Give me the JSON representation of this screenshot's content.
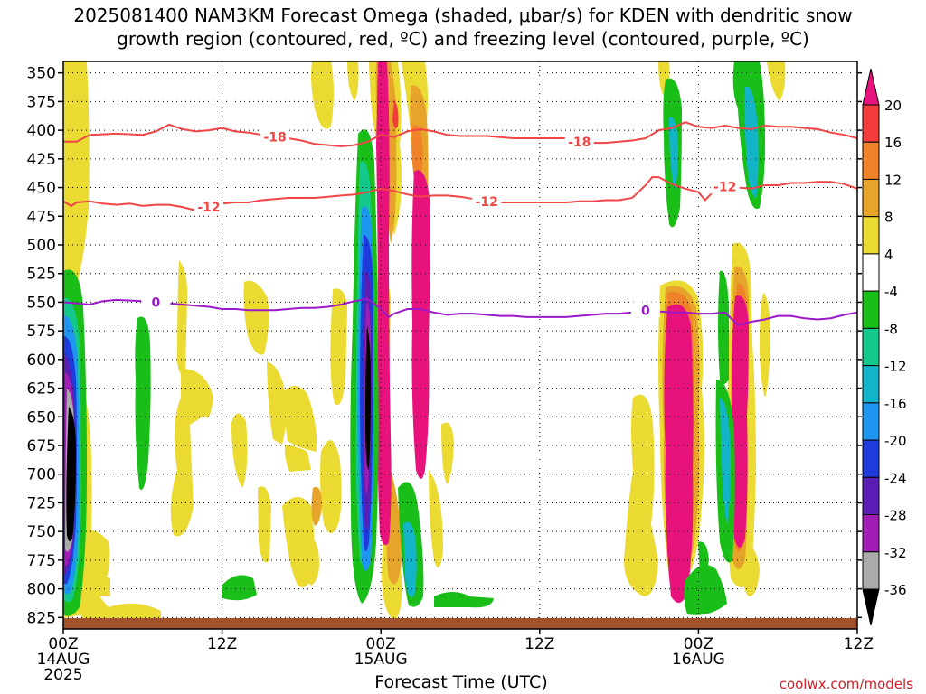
{
  "title_line1": "2025081400 NAM3KM Forecast Omega (shaded, μbar/s) for KDEN with dendritic snow",
  "title_line2": "growth region (contoured, red, ºC) and freezing level (contoured, purple, ºC)",
  "xlabel": "Forecast Time (UTC)",
  "credit": "coolwx.com/models",
  "chart_data": {
    "type": "heatmap",
    "title": "2025081400 NAM3KM Forecast Omega (shaded, μbar/s) for KDEN with dendritic snow growth region (contoured, red, ºC) and freezing level (contoured, purple, ºC)",
    "xlabel": "Forecast Time (UTC)",
    "ylabel": "",
    "x_range_hours": [
      0,
      60
    ],
    "y_range_mb": [
      340,
      835
    ],
    "y_reversed": true,
    "grid": true,
    "y_ticks": [
      350,
      375,
      400,
      425,
      450,
      475,
      500,
      525,
      550,
      575,
      600,
      625,
      650,
      675,
      700,
      725,
      750,
      775,
      800,
      825
    ],
    "x_ticks": [
      {
        "hour": 0,
        "lines": [
          "00Z",
          "14AUG",
          "2025"
        ]
      },
      {
        "hour": 12,
        "lines": [
          "12Z"
        ]
      },
      {
        "hour": 24,
        "lines": [
          "00Z",
          "15AUG"
        ]
      },
      {
        "hour": 36,
        "lines": [
          "12Z"
        ]
      },
      {
        "hour": 48,
        "lines": [
          "00Z",
          "16AUG"
        ]
      },
      {
        "hour": 60,
        "lines": [
          "12Z"
        ]
      }
    ],
    "colorbar": {
      "labels": [
        "20",
        "16",
        "12",
        "8",
        "4",
        "-4",
        "-8",
        "-12",
        "-16",
        "-20",
        "-24",
        "-28",
        "-32",
        "-36"
      ],
      "colors": [
        "#e8127c",
        "#f23c3c",
        "#f0822a",
        "#e6a52a",
        "#eada32",
        "#ffffff",
        "#19be19",
        "#14c88c",
        "#14b4c8",
        "#1e96f0",
        "#1e3cdc",
        "#5a1eb4",
        "#a01eb4",
        "#aaaaaa",
        "#000000"
      ]
    },
    "contours": [
      {
        "name": "-18",
        "color": "#f04646",
        "labels_at_hours": [
          16,
          39
        ],
        "points": [
          [
            0,
            410
          ],
          [
            1,
            410
          ],
          [
            2,
            404
          ],
          [
            4,
            403
          ],
          [
            6,
            404
          ],
          [
            7,
            401
          ],
          [
            8,
            395
          ],
          [
            9,
            399
          ],
          [
            10,
            401
          ],
          [
            11,
            400
          ],
          [
            12,
            398
          ],
          [
            13,
            401
          ],
          [
            14,
            402
          ],
          [
            15,
            404
          ],
          [
            16,
            406
          ],
          [
            17,
            407
          ],
          [
            18,
            409
          ],
          [
            19,
            412
          ],
          [
            20,
            413
          ],
          [
            21,
            414
          ],
          [
            22,
            413
          ],
          [
            23,
            410
          ],
          [
            24,
            404
          ],
          [
            25,
            406
          ],
          [
            26,
            401
          ],
          [
            27,
            399
          ],
          [
            28,
            401
          ],
          [
            29,
            404
          ],
          [
            30,
            405
          ],
          [
            31,
            405
          ],
          [
            32,
            405
          ],
          [
            33,
            406
          ],
          [
            34,
            407
          ],
          [
            35,
            407
          ],
          [
            36,
            407
          ],
          [
            37,
            407
          ],
          [
            38,
            407
          ],
          [
            39,
            410
          ],
          [
            40,
            411
          ],
          [
            41,
            411
          ],
          [
            42,
            410
          ],
          [
            43,
            409
          ],
          [
            44,
            407
          ],
          [
            45,
            400
          ],
          [
            46,
            398
          ],
          [
            47,
            393
          ],
          [
            48,
            397
          ],
          [
            49,
            398
          ],
          [
            50,
            396
          ],
          [
            51,
            398
          ],
          [
            52,
            399
          ],
          [
            53,
            396
          ],
          [
            54,
            397
          ],
          [
            55,
            397
          ],
          [
            56,
            398
          ],
          [
            57,
            399
          ],
          [
            58,
            402
          ],
          [
            59,
            404
          ],
          [
            60,
            407
          ]
        ]
      },
      {
        "name": "-12",
        "color": "#f04646",
        "labels_at_hours": [
          11,
          32,
          50
        ],
        "points": [
          [
            0,
            462
          ],
          [
            0.6,
            466
          ],
          [
            1,
            463
          ],
          [
            2,
            462
          ],
          [
            3,
            464
          ],
          [
            4,
            465
          ],
          [
            5,
            464
          ],
          [
            6,
            466
          ],
          [
            7,
            465
          ],
          [
            8,
            465
          ],
          [
            9,
            467
          ],
          [
            10,
            470
          ],
          [
            11,
            467
          ],
          [
            12,
            464
          ],
          [
            13,
            463
          ],
          [
            14,
            463
          ],
          [
            15,
            461
          ],
          [
            16,
            460
          ],
          [
            17,
            459
          ],
          [
            18,
            459
          ],
          [
            19,
            459
          ],
          [
            20,
            458
          ],
          [
            21,
            457
          ],
          [
            22,
            456
          ],
          [
            23,
            454
          ],
          [
            24,
            451
          ],
          [
            25,
            453
          ],
          [
            26,
            456
          ],
          [
            27,
            458
          ],
          [
            28,
            457
          ],
          [
            29,
            457
          ],
          [
            30,
            458
          ],
          [
            31,
            460
          ],
          [
            32,
            462
          ],
          [
            33,
            463
          ],
          [
            34,
            463
          ],
          [
            35,
            463
          ],
          [
            36,
            463
          ],
          [
            37,
            463
          ],
          [
            38,
            463
          ],
          [
            39,
            462
          ],
          [
            40,
            462
          ],
          [
            41,
            461
          ],
          [
            42,
            461
          ],
          [
            43,
            459
          ],
          [
            44,
            448
          ],
          [
            44.5,
            441
          ],
          [
            45,
            441
          ],
          [
            46,
            447
          ],
          [
            47,
            451
          ],
          [
            48,
            454
          ],
          [
            48.5,
            461
          ],
          [
            49,
            455
          ],
          [
            50,
            449
          ],
          [
            51,
            450
          ],
          [
            52,
            451
          ],
          [
            53,
            448
          ],
          [
            54,
            448
          ],
          [
            55,
            446
          ],
          [
            56,
            446
          ],
          [
            57,
            445
          ],
          [
            58,
            445
          ],
          [
            59,
            447
          ],
          [
            60,
            451
          ]
        ]
      },
      {
        "name": "0",
        "color": "#9b19c8",
        "labels_at_hours": [
          7,
          44
        ],
        "points": [
          [
            0,
            550
          ],
          [
            2,
            552
          ],
          [
            3,
            549
          ],
          [
            4,
            548
          ],
          [
            6,
            549
          ],
          [
            8,
            551
          ],
          [
            9,
            552
          ],
          [
            10,
            553
          ],
          [
            11,
            554
          ],
          [
            12,
            556
          ],
          [
            13,
            556
          ],
          [
            14,
            557
          ],
          [
            15,
            557
          ],
          [
            16,
            557
          ],
          [
            17,
            556
          ],
          [
            18,
            555
          ],
          [
            19,
            555
          ],
          [
            20,
            554
          ],
          [
            21,
            552
          ],
          [
            22,
            549
          ],
          [
            23,
            547
          ],
          [
            24,
            556
          ],
          [
            24.6,
            563
          ],
          [
            25,
            560
          ],
          [
            26,
            556
          ],
          [
            27,
            556
          ],
          [
            28,
            559
          ],
          [
            29,
            561
          ],
          [
            30,
            560
          ],
          [
            31,
            560
          ],
          [
            32,
            561
          ],
          [
            33,
            562
          ],
          [
            34,
            562
          ],
          [
            35,
            563
          ],
          [
            36,
            563
          ],
          [
            37,
            563
          ],
          [
            38,
            563
          ],
          [
            39,
            562
          ],
          [
            40,
            561
          ],
          [
            41,
            560
          ],
          [
            42,
            560
          ],
          [
            43,
            559
          ],
          [
            44,
            557
          ],
          [
            45,
            558
          ],
          [
            46,
            559
          ],
          [
            47,
            559
          ],
          [
            48,
            560
          ],
          [
            49,
            560
          ],
          [
            50,
            559
          ],
          [
            51,
            570
          ],
          [
            52,
            567
          ],
          [
            53,
            565
          ],
          [
            54,
            562
          ],
          [
            55,
            562
          ],
          [
            56,
            564
          ],
          [
            57,
            565
          ],
          [
            58,
            564
          ],
          [
            59,
            561
          ],
          [
            60,
            559
          ]
        ]
      }
    ]
  }
}
